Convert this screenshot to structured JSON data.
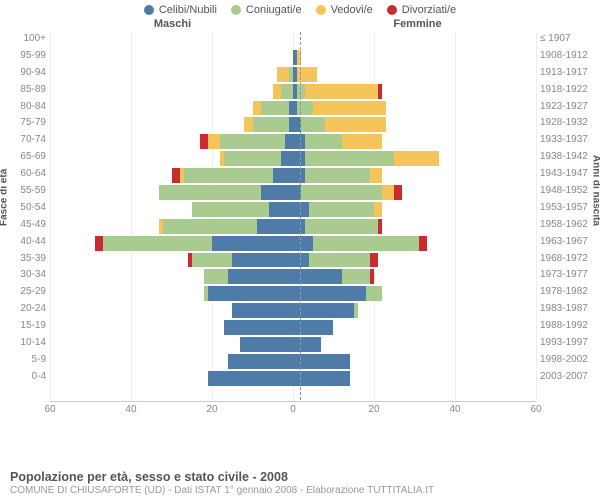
{
  "type": "population-pyramid",
  "colors": {
    "celibi": "#4e7ba8",
    "coniugati": "#aacb8f",
    "vedovi": "#f5c55b",
    "divorziati": "#cb2a2e",
    "background": "#ffffff",
    "grid": "#eeeeee",
    "axis": "#cccccc",
    "text": "#555555",
    "muted": "#888888"
  },
  "legend": [
    {
      "key": "celibi",
      "label": "Celibi/Nubili"
    },
    {
      "key": "coniugati",
      "label": "Coniugati/e"
    },
    {
      "key": "vedovi",
      "label": "Vedovi/e"
    },
    {
      "key": "divorziati",
      "label": "Divorziati/e"
    }
  ],
  "headers": {
    "male": "Maschi",
    "female": "Femmine"
  },
  "ylabels": {
    "left": "Fasce di età",
    "right": "Anni di nascita"
  },
  "xaxis": {
    "min": -60,
    "max": 60,
    "ticks": [
      -60,
      -40,
      -20,
      0,
      20,
      40,
      60
    ],
    "labels": [
      "60",
      "40",
      "20",
      "0",
      "20",
      "40",
      "60"
    ]
  },
  "title": "Popolazione per età, sesso e stato civile - 2008",
  "subtitle": "COMUNE DI CHIUSAFORTE (UD) - Dati ISTAT 1° gennaio 2008 - Elaborazione TUTTITALIA.IT",
  "segment_order_male": [
    "divorziati",
    "vedovi",
    "coniugati",
    "celibi"
  ],
  "segment_order_female": [
    "celibi",
    "coniugati",
    "vedovi",
    "divorziati"
  ],
  "rows": [
    {
      "age": "100+",
      "cohort": "≤ 1907",
      "m": {
        "celibi": 0,
        "coniugati": 0,
        "vedovi": 0,
        "divorziati": 0
      },
      "f": {
        "celibi": 0,
        "coniugati": 0,
        "vedovi": 0,
        "divorziati": 0
      }
    },
    {
      "age": "95-99",
      "cohort": "1908-1912",
      "m": {
        "celibi": 0,
        "coniugati": 0,
        "vedovi": 0,
        "divorziati": 0
      },
      "f": {
        "celibi": 1,
        "coniugati": 0,
        "vedovi": 1,
        "divorziati": 0
      }
    },
    {
      "age": "90-94",
      "cohort": "1913-1917",
      "m": {
        "celibi": 0,
        "coniugati": 1,
        "vedovi": 3,
        "divorziati": 0
      },
      "f": {
        "celibi": 1,
        "coniugati": 0,
        "vedovi": 5,
        "divorziati": 0
      }
    },
    {
      "age": "85-89",
      "cohort": "1918-1922",
      "m": {
        "celibi": 0,
        "coniugati": 3,
        "vedovi": 2,
        "divorziati": 0
      },
      "f": {
        "celibi": 1,
        "coniugati": 2,
        "vedovi": 18,
        "divorziati": 1
      }
    },
    {
      "age": "80-84",
      "cohort": "1923-1927",
      "m": {
        "celibi": 1,
        "coniugati": 7,
        "vedovi": 2,
        "divorziati": 0
      },
      "f": {
        "celibi": 1,
        "coniugati": 4,
        "vedovi": 18,
        "divorziati": 0
      }
    },
    {
      "age": "75-79",
      "cohort": "1928-1932",
      "m": {
        "celibi": 1,
        "coniugati": 9,
        "vedovi": 2,
        "divorziati": 0
      },
      "f": {
        "celibi": 2,
        "coniugati": 6,
        "vedovi": 15,
        "divorziati": 0
      }
    },
    {
      "age": "70-74",
      "cohort": "1933-1937",
      "m": {
        "celibi": 2,
        "coniugati": 16,
        "vedovi": 3,
        "divorziati": 2
      },
      "f": {
        "celibi": 3,
        "coniugati": 9,
        "vedovi": 10,
        "divorziati": 0
      }
    },
    {
      "age": "65-69",
      "cohort": "1938-1942",
      "m": {
        "celibi": 3,
        "coniugati": 14,
        "vedovi": 1,
        "divorziati": 0
      },
      "f": {
        "celibi": 3,
        "coniugati": 22,
        "vedovi": 11,
        "divorziati": 0
      }
    },
    {
      "age": "60-64",
      "cohort": "1943-1947",
      "m": {
        "celibi": 5,
        "coniugati": 22,
        "vedovi": 1,
        "divorziati": 2
      },
      "f": {
        "celibi": 3,
        "coniugati": 16,
        "vedovi": 3,
        "divorziati": 0
      }
    },
    {
      "age": "55-59",
      "cohort": "1948-1952",
      "m": {
        "celibi": 8,
        "coniugati": 25,
        "vedovi": 0,
        "divorziati": 0
      },
      "f": {
        "celibi": 2,
        "coniugati": 20,
        "vedovi": 3,
        "divorziati": 2
      }
    },
    {
      "age": "50-54",
      "cohort": "1953-1957",
      "m": {
        "celibi": 6,
        "coniugati": 19,
        "vedovi": 0,
        "divorziati": 0
      },
      "f": {
        "celibi": 4,
        "coniugati": 16,
        "vedovi": 2,
        "divorziati": 0
      }
    },
    {
      "age": "45-49",
      "cohort": "1958-1962",
      "m": {
        "celibi": 9,
        "coniugati": 23,
        "vedovi": 1,
        "divorziati": 0
      },
      "f": {
        "celibi": 3,
        "coniugati": 18,
        "vedovi": 0,
        "divorziati": 1
      }
    },
    {
      "age": "40-44",
      "cohort": "1963-1967",
      "m": {
        "celibi": 20,
        "coniugati": 27,
        "vedovi": 0,
        "divorziati": 2
      },
      "f": {
        "celibi": 5,
        "coniugati": 26,
        "vedovi": 0,
        "divorziati": 2
      }
    },
    {
      "age": "35-39",
      "cohort": "1968-1972",
      "m": {
        "celibi": 15,
        "coniugati": 10,
        "vedovi": 0,
        "divorziati": 1
      },
      "f": {
        "celibi": 4,
        "coniugati": 15,
        "vedovi": 0,
        "divorziati": 2
      }
    },
    {
      "age": "30-34",
      "cohort": "1973-1977",
      "m": {
        "celibi": 16,
        "coniugati": 6,
        "vedovi": 0,
        "divorziati": 0
      },
      "f": {
        "celibi": 12,
        "coniugati": 7,
        "vedovi": 0,
        "divorziati": 1
      }
    },
    {
      "age": "25-29",
      "cohort": "1978-1982",
      "m": {
        "celibi": 21,
        "coniugati": 1,
        "vedovi": 0,
        "divorziati": 0
      },
      "f": {
        "celibi": 18,
        "coniugati": 4,
        "vedovi": 0,
        "divorziati": 0
      }
    },
    {
      "age": "20-24",
      "cohort": "1983-1987",
      "m": {
        "celibi": 15,
        "coniugati": 0,
        "vedovi": 0,
        "divorziati": 0
      },
      "f": {
        "celibi": 15,
        "coniugati": 1,
        "vedovi": 0,
        "divorziati": 0
      }
    },
    {
      "age": "15-19",
      "cohort": "1988-1992",
      "m": {
        "celibi": 17,
        "coniugati": 0,
        "vedovi": 0,
        "divorziati": 0
      },
      "f": {
        "celibi": 10,
        "coniugati": 0,
        "vedovi": 0,
        "divorziati": 0
      }
    },
    {
      "age": "10-14",
      "cohort": "1993-1997",
      "m": {
        "celibi": 13,
        "coniugati": 0,
        "vedovi": 0,
        "divorziati": 0
      },
      "f": {
        "celibi": 7,
        "coniugati": 0,
        "vedovi": 0,
        "divorziati": 0
      }
    },
    {
      "age": "5-9",
      "cohort": "1998-2002",
      "m": {
        "celibi": 16,
        "coniugati": 0,
        "vedovi": 0,
        "divorziati": 0
      },
      "f": {
        "celibi": 14,
        "coniugati": 0,
        "vedovi": 0,
        "divorziati": 0
      }
    },
    {
      "age": "0-4",
      "cohort": "2003-2007",
      "m": {
        "celibi": 21,
        "coniugati": 0,
        "vedovi": 0,
        "divorziati": 0
      },
      "f": {
        "celibi": 14,
        "coniugati": 0,
        "vedovi": 0,
        "divorziati": 0
      }
    }
  ]
}
